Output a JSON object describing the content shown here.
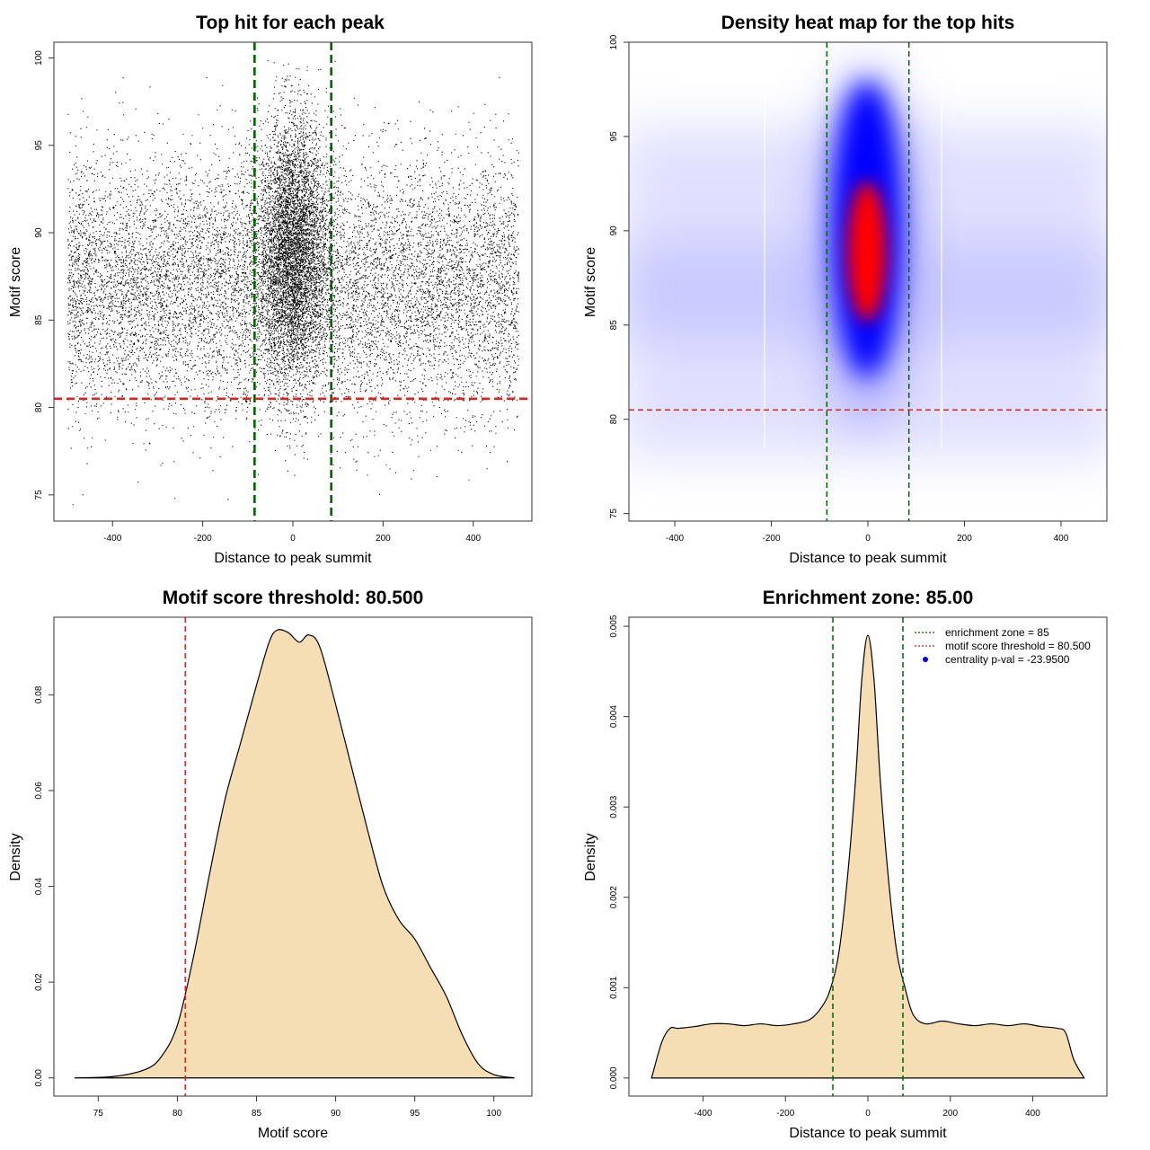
{
  "figure": {
    "colors": {
      "fill": "#f5deb3",
      "green_line": "#006400",
      "red_line": "#dd2222",
      "heat_low": "#ffffff",
      "heat_mid": "#0000ff",
      "heat_high": "#ff0000",
      "point": "#000000"
    }
  },
  "chart_data": [
    {
      "type": "scatter",
      "title": "Top hit for each peak",
      "xlabel": "Distance to peak summit",
      "ylabel": "Motif score",
      "xlim": [
        -530,
        530
      ],
      "ylim": [
        73.5,
        100.9
      ],
      "xticks": [
        -400,
        -200,
        0,
        200,
        400
      ],
      "xtick_labels": [
        "-400",
        "-200",
        "0",
        "200",
        "400"
      ],
      "yticks": [
        75,
        80,
        85,
        90,
        95,
        100
      ],
      "ytick_labels": [
        "75",
        "80",
        "85",
        "90",
        "95",
        "100"
      ],
      "vlines": [
        -85,
        85
      ],
      "hline": 80.5,
      "grid": false,
      "distribution": {
        "x_range": [
          -500,
          500
        ],
        "background_mean": 87.0,
        "background_sd": 3.6,
        "central_sd_x": 38,
        "central_mean": 89.0,
        "central_sd": 3.8,
        "points_background": 11000,
        "points_central": 7000
      }
    },
    {
      "type": "heatmap",
      "title": "Density heat map for the top hits",
      "xlabel": "Distance to peak summit",
      "ylabel": "Motif score",
      "xlim": [
        -495,
        495
      ],
      "ylim": [
        74.6,
        100.0
      ],
      "xticks": [
        -400,
        -200,
        0,
        200,
        400
      ],
      "xtick_labels": [
        "-400",
        "-200",
        "0",
        "200",
        "400"
      ],
      "yticks": [
        75,
        80,
        85,
        90,
        95,
        100
      ],
      "ytick_labels": [
        "75",
        "80",
        "85",
        "90",
        "95",
        "100"
      ],
      "vlines": [
        -85,
        85
      ],
      "hline": 80.5,
      "grid": false,
      "density_peak": {
        "x": 0,
        "y": 89.0
      }
    },
    {
      "type": "area",
      "title": "Motif score threshold: 80.500",
      "xlabel": "Motif score",
      "ylabel": "Density",
      "xlim": [
        72.2,
        102.4
      ],
      "ylim": [
        -0.0038,
        0.0962
      ],
      "xticks": [
        75,
        80,
        85,
        90,
        95,
        100
      ],
      "xtick_labels": [
        "75",
        "80",
        "85",
        "90",
        "95",
        "100"
      ],
      "yticks": [
        0,
        0.02,
        0.04,
        0.06,
        0.08
      ],
      "ytick_labels": [
        "0.00",
        "0.02",
        "0.04",
        "0.06",
        "0.08"
      ],
      "vlines": [
        80.5
      ],
      "grid": false,
      "x": [
        73.5,
        76.0,
        78.0,
        79.0,
        80.0,
        81.0,
        82.0,
        83.0,
        84.0,
        85.0,
        85.8,
        86.3,
        87.0,
        87.7,
        88.3,
        89.0,
        90.0,
        91.0,
        92.0,
        93.0,
        94.0,
        95.0,
        96.0,
        97.0,
        98.0,
        99.0,
        100.0,
        101.3
      ],
      "y": [
        0.0,
        0.0003,
        0.0018,
        0.0045,
        0.011,
        0.025,
        0.042,
        0.058,
        0.07,
        0.082,
        0.091,
        0.0935,
        0.093,
        0.091,
        0.0925,
        0.09,
        0.078,
        0.065,
        0.052,
        0.04,
        0.033,
        0.029,
        0.023,
        0.017,
        0.009,
        0.003,
        0.0007,
        0.0
      ]
    },
    {
      "type": "area",
      "title": "Enrichment zone: 85.00",
      "xlabel": "Distance to peak summit",
      "ylabel": "Density",
      "xlim": [
        -580,
        580
      ],
      "ylim": [
        -0.0002,
        0.0051
      ],
      "xticks": [
        -400,
        -200,
        0,
        200,
        400
      ],
      "xtick_labels": [
        "-400",
        "-200",
        "0",
        "200",
        "400"
      ],
      "yticks": [
        0,
        0.001,
        0.002,
        0.003,
        0.004,
        0.005
      ],
      "ytick_labels": [
        "0.000",
        "0.001",
        "0.002",
        "0.003",
        "0.004",
        "0.005"
      ],
      "vlines": [
        -85,
        85
      ],
      "grid": false,
      "x": [
        -525,
        -500,
        -480,
        -460,
        -420,
        -380,
        -340,
        -300,
        -260,
        -220,
        -180,
        -140,
        -110,
        -90,
        -70,
        -50,
        -30,
        -15,
        0,
        15,
        30,
        50,
        70,
        90,
        110,
        140,
        180,
        220,
        260,
        300,
        340,
        380,
        420,
        460,
        480,
        500,
        525
      ],
      "y": [
        0.0,
        0.0004,
        0.00055,
        0.00055,
        0.00057,
        0.0006,
        0.0006,
        0.00058,
        0.0006,
        0.00058,
        0.0006,
        0.00065,
        0.0008,
        0.001,
        0.0014,
        0.0022,
        0.0033,
        0.0044,
        0.0049,
        0.0044,
        0.0033,
        0.0022,
        0.0014,
        0.001,
        0.0007,
        0.0006,
        0.00063,
        0.0006,
        0.00058,
        0.0006,
        0.00058,
        0.0006,
        0.00057,
        0.00055,
        0.0005,
        0.0002,
        0.0
      ],
      "legend": {
        "position": "top-right",
        "entries": [
          {
            "label": "enrichment zone = 85",
            "style": "dotted",
            "color": "#006400"
          },
          {
            "label": "motif score threshold = 80.500",
            "style": "dotted",
            "color": "#dd2222"
          },
          {
            "label": "centrality p-val = -23.9500",
            "style": "point",
            "color": "#0000ff"
          }
        ]
      }
    }
  ]
}
